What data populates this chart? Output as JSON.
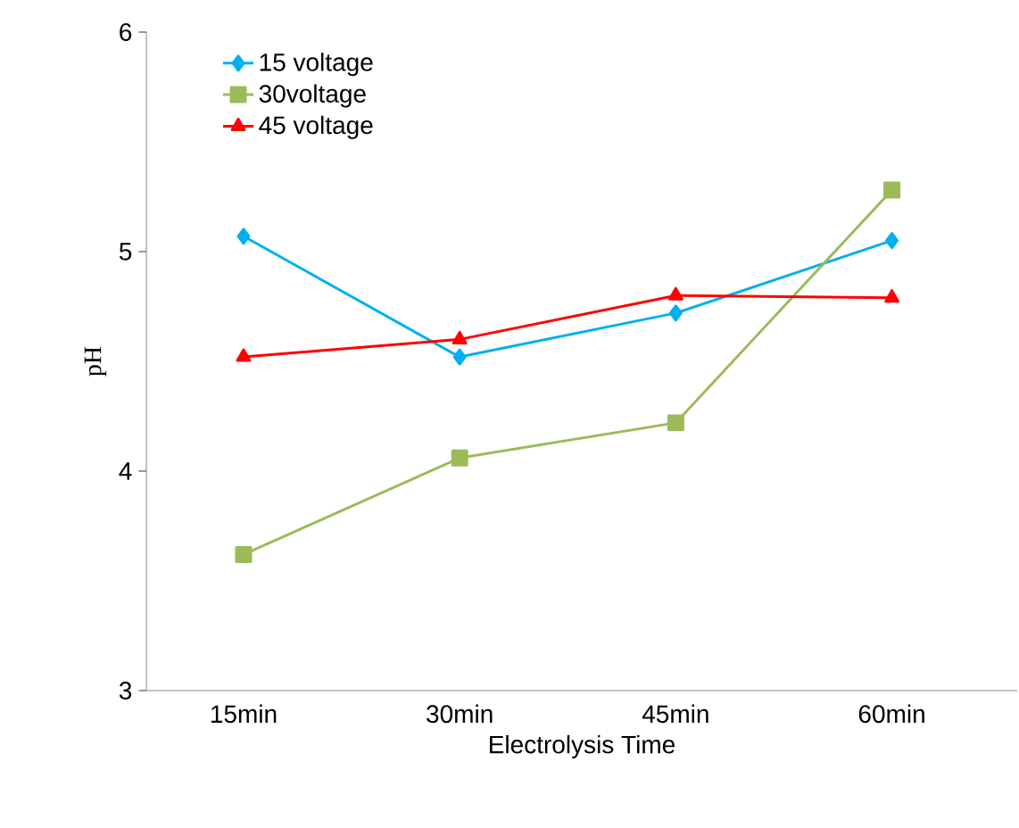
{
  "chart_data": {
    "type": "line",
    "xlabel": "Electrolysis Time",
    "ylabel": "pH",
    "categories": [
      "15min",
      "30min",
      "45min",
      "60min"
    ],
    "series": [
      {
        "name": "15 voltage",
        "color": "#00b0f0",
        "marker": "diamond",
        "values": [
          5.07,
          4.52,
          4.72,
          5.05
        ]
      },
      {
        "name": "30voltage",
        "color": "#9bbb59",
        "marker": "square",
        "values": [
          3.62,
          4.06,
          4.22,
          5.28
        ]
      },
      {
        "name": "45 voltage",
        "color": "#ff0000",
        "marker": "triangle",
        "values": [
          4.52,
          4.6,
          4.8,
          4.79
        ]
      }
    ],
    "ylim": [
      3,
      6
    ],
    "yticks": [
      3,
      4,
      5,
      6
    ],
    "grid": false,
    "legend": "top left",
    "line_style": "solid"
  }
}
